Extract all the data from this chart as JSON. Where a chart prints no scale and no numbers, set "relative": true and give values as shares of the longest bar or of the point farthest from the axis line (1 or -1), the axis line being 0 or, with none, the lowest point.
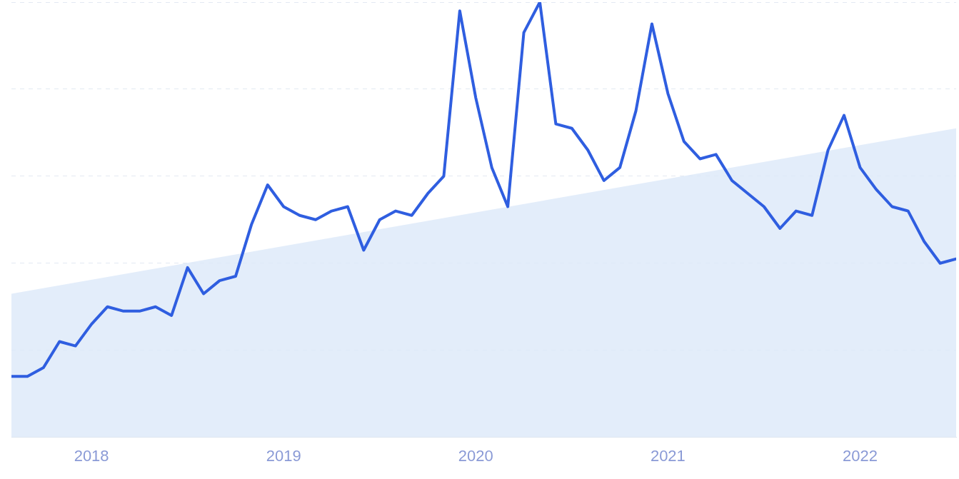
{
  "chart_data": {
    "type": "line",
    "relative": true,
    "grid": "y",
    "legend": false,
    "marker": "none",
    "line_style": "solid",
    "tick_labels": "x",
    "xlim": [
      "2017-08",
      "2022-07"
    ],
    "xticks": [
      "2018",
      "2019",
      "2020",
      "2021",
      "2022"
    ],
    "series": [
      {
        "type": "area",
        "color": "#dce9f9",
        "x": [
          "2017-08",
          "2022-07"
        ],
        "values": [
          0.33,
          0.71
        ]
      },
      {
        "color": "#2f5ee0",
        "x": [
          "2017-08",
          "2017-09",
          "2017-10",
          "2017-11",
          "2017-12",
          "2018-01",
          "2018-02",
          "2018-03",
          "2018-04",
          "2018-05",
          "2018-06",
          "2018-07",
          "2018-08",
          "2018-09",
          "2018-10",
          "2018-11",
          "2018-12",
          "2019-01",
          "2019-02",
          "2019-03",
          "2019-04",
          "2019-05",
          "2019-06",
          "2019-07",
          "2019-08",
          "2019-09",
          "2019-10",
          "2019-11",
          "2019-12",
          "2020-01",
          "2020-02",
          "2020-03",
          "2020-04",
          "2020-05",
          "2020-06",
          "2020-07",
          "2020-08",
          "2020-09",
          "2020-10",
          "2020-11",
          "2020-12",
          "2021-01",
          "2021-02",
          "2021-03",
          "2021-04",
          "2021-05",
          "2021-06",
          "2021-07",
          "2021-08",
          "2021-09",
          "2021-10",
          "2021-11",
          "2021-12",
          "2022-01",
          "2022-02",
          "2022-03",
          "2022-04",
          "2022-05",
          "2022-06",
          "2022-07"
        ],
        "values": [
          0.14,
          0.14,
          0.16,
          0.22,
          0.21,
          0.26,
          0.3,
          0.29,
          0.29,
          0.3,
          0.28,
          0.39,
          0.33,
          0.36,
          0.37,
          0.49,
          0.58,
          0.53,
          0.51,
          0.5,
          0.52,
          0.53,
          0.43,
          0.5,
          0.52,
          0.51,
          0.56,
          0.6,
          0.98,
          0.78,
          0.62,
          0.53,
          0.93,
          1.0,
          0.72,
          0.71,
          0.66,
          0.59,
          0.62,
          0.75,
          0.95,
          0.79,
          0.68,
          0.64,
          0.65,
          0.59,
          0.56,
          0.53,
          0.48,
          0.52,
          0.51,
          0.66,
          0.74,
          0.62,
          0.57,
          0.53,
          0.52,
          0.45,
          0.4,
          0.41
        ]
      }
    ]
  }
}
